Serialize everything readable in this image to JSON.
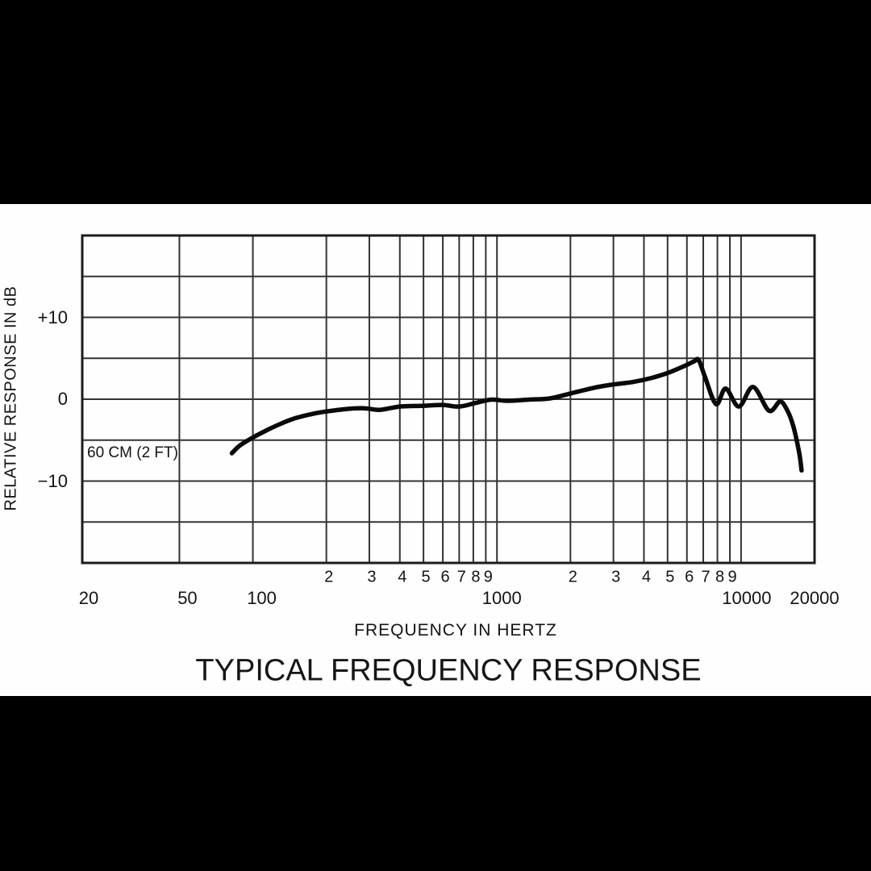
{
  "page": {
    "background_color": "#000000",
    "panel_color": "#fefefe",
    "line_color": "#333333",
    "curve_color": "#0a0a0a"
  },
  "chart_data": {
    "type": "line",
    "title": "TYPICAL FREQUENCY RESPONSE",
    "xlabel": "FREQUENCY IN HERTZ",
    "ylabel": "RELATIVE RESPONSE IN dB",
    "annotation": "60 CM (2 FT)",
    "x_scale": "log",
    "x_range_hz": [
      20,
      20000
    ],
    "y_range_db": [
      -20,
      20
    ],
    "y_gridline_step_db": 5,
    "grid": true,
    "legend": "none",
    "y_ticks": [
      {
        "value": 10,
        "label": "+10"
      },
      {
        "value": 0,
        "label": "0"
      },
      {
        "value": -10,
        "label": "−10"
      }
    ],
    "x_major_ticks": [
      {
        "value": 20,
        "label": "20"
      },
      {
        "value": 50,
        "label": "50"
      },
      {
        "value": 100,
        "label": "100"
      },
      {
        "value": 1000,
        "label": "1000"
      },
      {
        "value": 10000,
        "label": "10000"
      },
      {
        "value": 20000,
        "label": "20000"
      }
    ],
    "x_minor_ticks": [
      {
        "value": 200,
        "label": "2"
      },
      {
        "value": 300,
        "label": "3"
      },
      {
        "value": 400,
        "label": "4"
      },
      {
        "value": 500,
        "label": "5"
      },
      {
        "value": 600,
        "label": "6"
      },
      {
        "value": 700,
        "label": "7"
      },
      {
        "value": 800,
        "label": "8"
      },
      {
        "value": 900,
        "label": "9"
      },
      {
        "value": 2000,
        "label": "2"
      },
      {
        "value": 3000,
        "label": "3"
      },
      {
        "value": 4000,
        "label": "4"
      },
      {
        "value": 5000,
        "label": "5"
      },
      {
        "value": 6000,
        "label": "6"
      },
      {
        "value": 7000,
        "label": "7"
      },
      {
        "value": 8000,
        "label": "8"
      },
      {
        "value": 9000,
        "label": "9"
      }
    ],
    "x_gridlines_hz": [
      50,
      100,
      200,
      300,
      400,
      500,
      600,
      700,
      800,
      900,
      1000,
      2000,
      3000,
      4000,
      5000,
      6000,
      7000,
      8000,
      9000,
      10000
    ],
    "series": [
      {
        "name": "60 CM (2 FT)",
        "points_hz_db": [
          [
            82,
            -6.6
          ],
          [
            88,
            -5.7
          ],
          [
            97,
            -4.9
          ],
          [
            112,
            -3.9
          ],
          [
            130,
            -3.0
          ],
          [
            150,
            -2.3
          ],
          [
            175,
            -1.8
          ],
          [
            200,
            -1.5
          ],
          [
            240,
            -1.2
          ],
          [
            285,
            -1.1
          ],
          [
            330,
            -1.3
          ],
          [
            400,
            -0.9
          ],
          [
            500,
            -0.8
          ],
          [
            600,
            -0.7
          ],
          [
            700,
            -0.9
          ],
          [
            820,
            -0.45
          ],
          [
            950,
            -0.05
          ],
          [
            1100,
            -0.2
          ],
          [
            1350,
            -0.05
          ],
          [
            1650,
            0.1
          ],
          [
            2000,
            0.7
          ],
          [
            2500,
            1.4
          ],
          [
            3000,
            1.8
          ],
          [
            3600,
            2.1
          ],
          [
            4300,
            2.6
          ],
          [
            5000,
            3.2
          ],
          [
            5800,
            4.0
          ],
          [
            6400,
            4.6
          ],
          [
            6700,
            4.8
          ],
          [
            7100,
            2.8
          ],
          [
            7900,
            -0.6
          ],
          [
            8650,
            1.3
          ],
          [
            9800,
            -0.9
          ],
          [
            11200,
            1.5
          ],
          [
            13000,
            -1.4
          ],
          [
            14400,
            -0.3
          ],
          [
            15300,
            -1.1
          ],
          [
            16300,
            -3.1
          ],
          [
            17300,
            -6.5
          ],
          [
            17700,
            -8.7
          ]
        ]
      }
    ]
  }
}
